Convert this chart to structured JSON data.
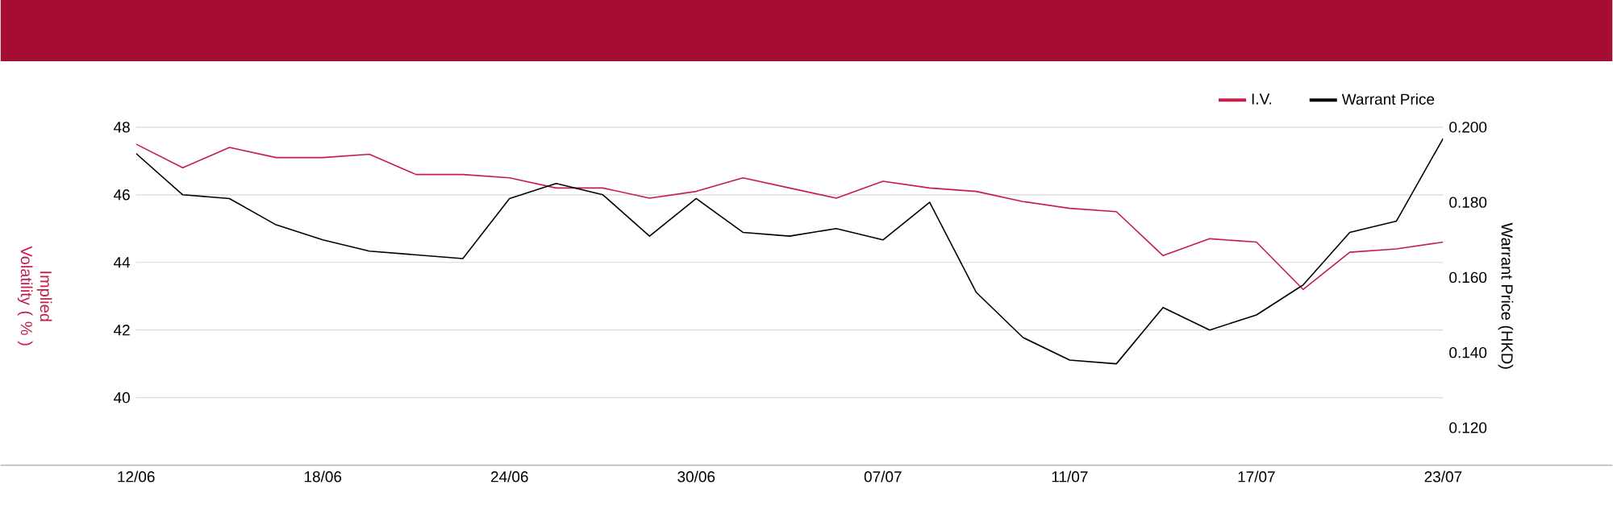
{
  "chart_data": {
    "type": "line",
    "ylabel": "Implied Volatility ( % )",
    "y2label": "Warrant Price (HKD)",
    "categories": [
      "12/06",
      null,
      null,
      null,
      "18/06",
      null,
      null,
      null,
      "24/06",
      null,
      null,
      null,
      "30/06",
      null,
      null,
      null,
      "07/07",
      null,
      null,
      null,
      "11/07",
      null,
      null,
      null,
      "17/07",
      null,
      null,
      null,
      "23/07"
    ],
    "series": [
      {
        "name": "I.V.",
        "color": "#c41e48",
        "values": [
          47.5,
          46.8,
          47.4,
          47.1,
          47.1,
          47.2,
          46.6,
          46.6,
          46.5,
          46.2,
          46.2,
          45.9,
          46.1,
          46.5,
          46.2,
          45.9,
          46.4,
          46.2,
          46.1,
          45.8,
          45.6,
          45.5,
          44.2,
          44.7,
          44.6,
          43.2,
          44.3,
          44.4,
          44.6
        ]
      },
      {
        "name": "Warrant Price",
        "color": "#000000",
        "axis": "y2",
        "values": [
          0.193,
          0.182,
          0.181,
          0.174,
          0.17,
          0.167,
          0.166,
          0.165,
          0.181,
          0.185,
          0.182,
          0.171,
          0.181,
          0.172,
          0.171,
          0.173,
          0.17,
          0.18,
          0.156,
          0.144,
          0.138,
          0.137,
          0.152,
          0.146,
          0.15,
          0.158,
          0.172,
          0.175,
          0.197
        ]
      }
    ],
    "ylim": [
      38,
      48
    ],
    "yticks": [
      40,
      42,
      44,
      46,
      48
    ],
    "y2lim": [
      0.11,
      0.2
    ],
    "y2ticks": [
      {
        "value": 0.12,
        "label": "0.120"
      },
      {
        "value": 0.14,
        "label": "0.140"
      },
      {
        "value": 0.16,
        "label": "0.160"
      },
      {
        "value": 0.18,
        "label": "0.180"
      },
      {
        "value": 0.2,
        "label": "0.200"
      }
    ],
    "grid": "y",
    "legend": "top right"
  }
}
